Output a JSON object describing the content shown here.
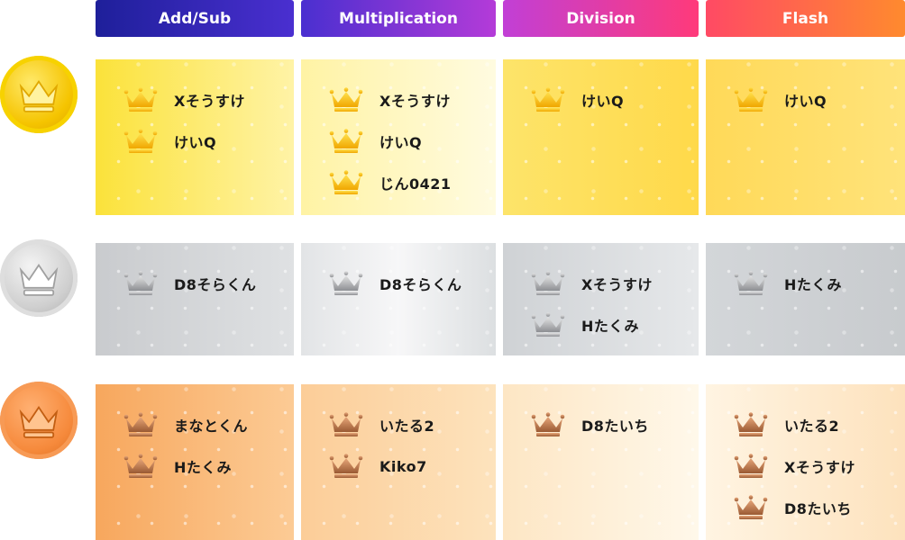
{
  "headers": [
    "Add/Sub",
    "Multiplication",
    "Division",
    "Flash"
  ],
  "colors": {
    "gold": "#f5c400",
    "silver": "#b9bcc0",
    "bronze": "#e87a2c"
  },
  "icons": {
    "medal": "crown-medal-icon",
    "entry": "crown-icon"
  },
  "rows": {
    "gold": {
      "add_sub": [
        "Xそうすけ",
        "けいQ"
      ],
      "multiplication": [
        "Xそうすけ",
        "けいQ",
        "じん0421"
      ],
      "division": [
        "けいQ"
      ],
      "flash": [
        "けいQ"
      ]
    },
    "silver": {
      "add_sub": [
        "D8そらくん"
      ],
      "multiplication": [
        "D8そらくん"
      ],
      "division": [
        "Xそうすけ",
        "Hたくみ"
      ],
      "flash": [
        "Hたくみ"
      ]
    },
    "bronze": {
      "add_sub": [
        "まなとくん",
        "Hたくみ"
      ],
      "multiplication": [
        "いたる2",
        "Kiko7"
      ],
      "division": [
        "D8たいち"
      ],
      "flash": [
        "いたる2",
        "Xそうすけ",
        "D8たいち"
      ]
    }
  }
}
